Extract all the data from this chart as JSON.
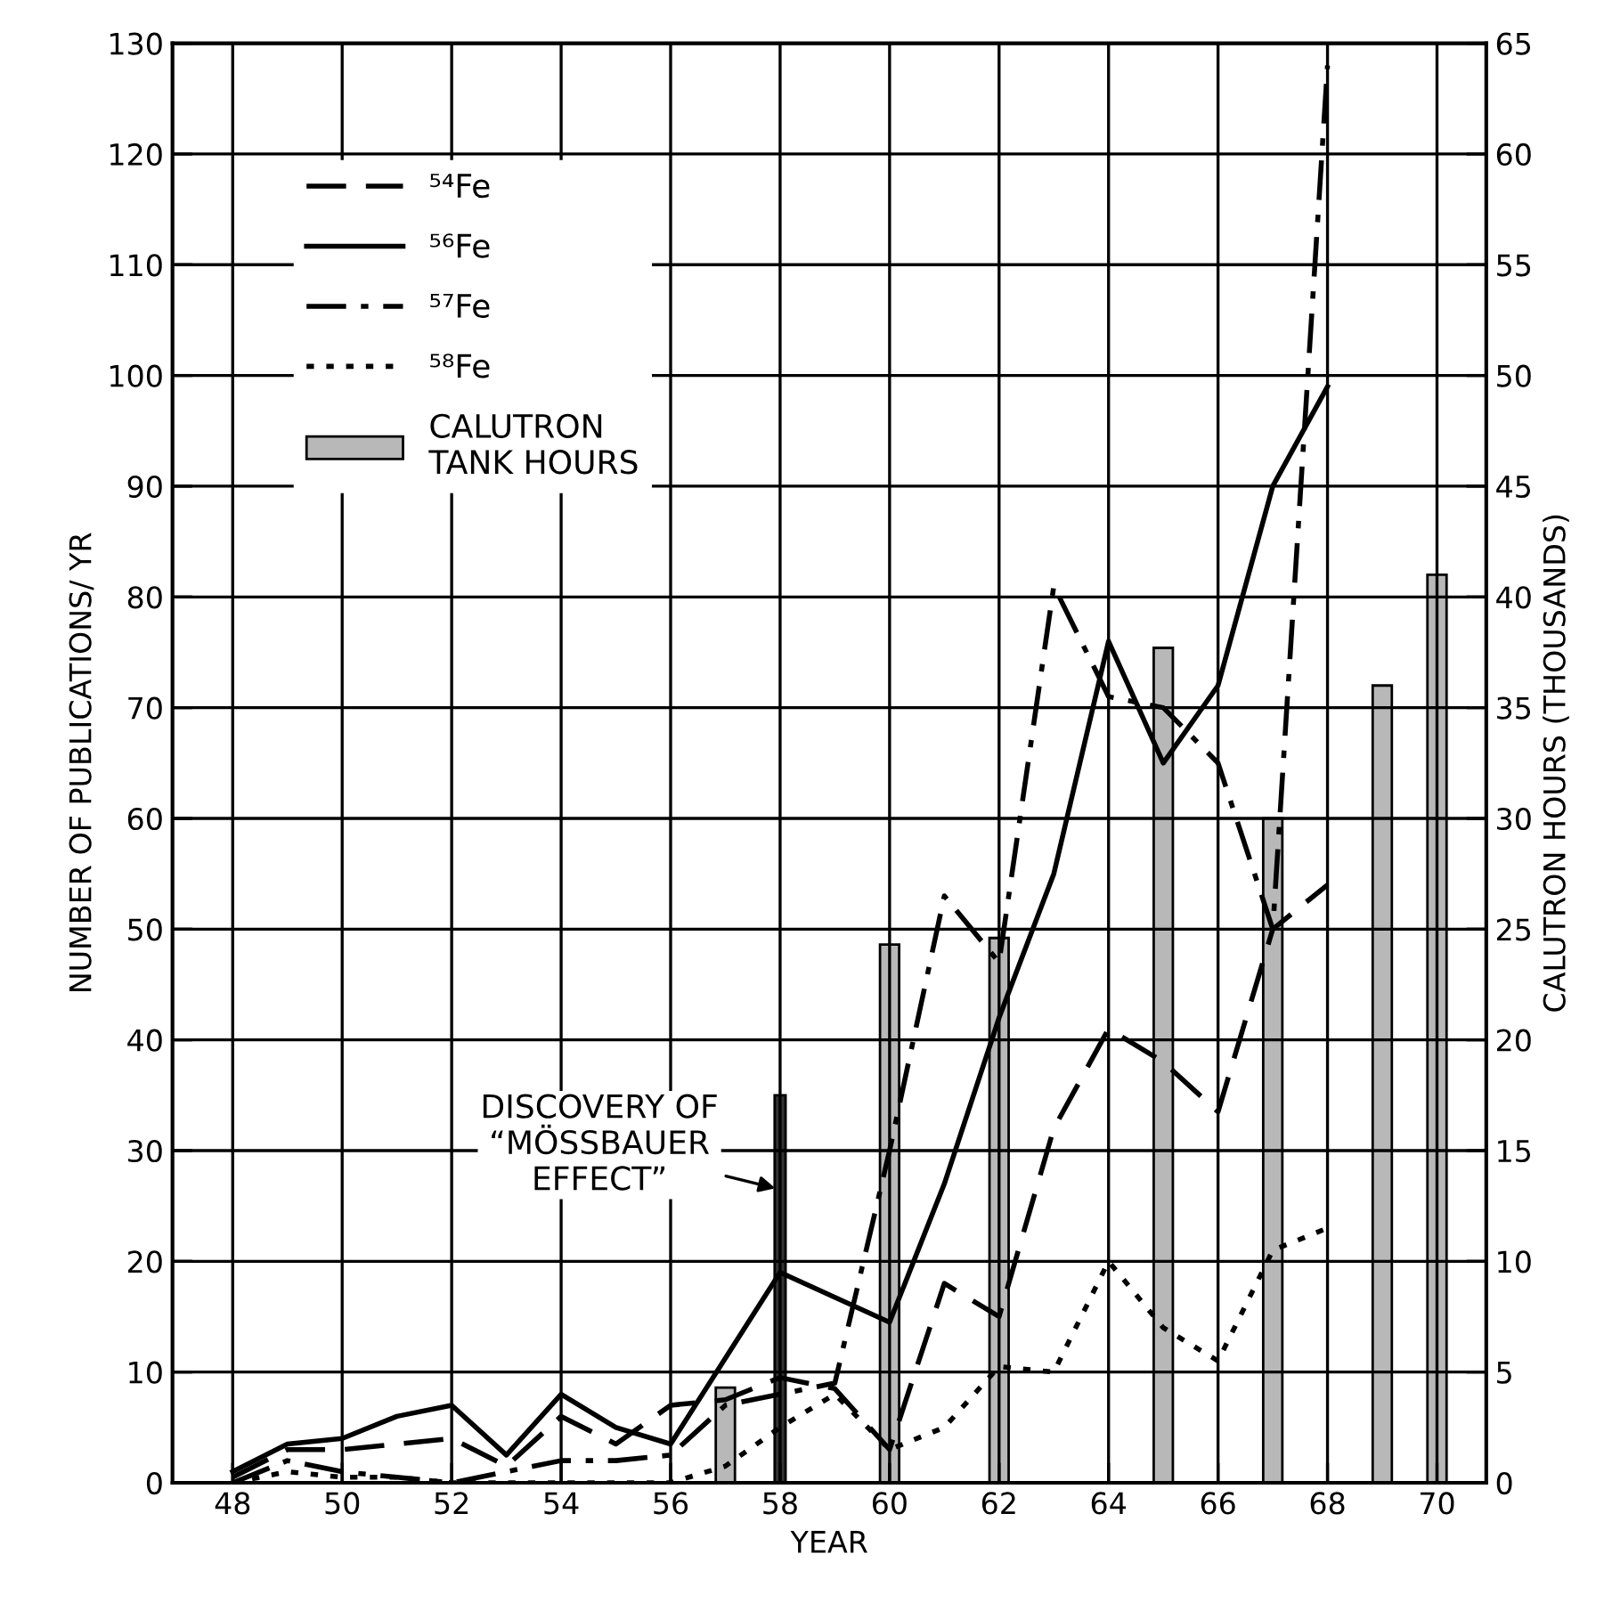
{
  "chart_data": {
    "type": "line",
    "xlabel": "YEAR",
    "ylabel": "NUMBER OF PUBLICATIONS/ YR",
    "y2label": "CALUTRON HOURS (THOUSANDS)",
    "xlim": [
      46.9,
      70.9
    ],
    "xticks": [
      48,
      50,
      52,
      54,
      56,
      58,
      60,
      62,
      64,
      66,
      68,
      70
    ],
    "ylim": [
      0,
      130
    ],
    "yticks": [
      0,
      10,
      20,
      30,
      40,
      50,
      60,
      70,
      80,
      90,
      100,
      110,
      120,
      130
    ],
    "y2lim": [
      0,
      65
    ],
    "y2ticks": [
      0,
      5,
      10,
      15,
      20,
      25,
      30,
      35,
      40,
      45,
      50,
      55,
      60,
      65
    ],
    "grid": true,
    "legend": "top left",
    "series": [
      {
        "name": "⁵⁴Fe",
        "line_style": "dashed",
        "color": "#000000",
        "x": [
          48,
          49,
          50,
          51,
          52,
          53,
          54,
          55,
          56,
          57,
          58,
          59,
          60,
          61,
          62,
          63,
          64,
          65,
          66,
          67,
          68
        ],
        "values": [
          0.5,
          3,
          3,
          3.5,
          4,
          1.5,
          6,
          3.5,
          7,
          7.5,
          9.5,
          8.5,
          3,
          18,
          15,
          32,
          41,
          38,
          33.5,
          50,
          54
        ]
      },
      {
        "name": "⁵⁶Fe",
        "line_style": "solid",
        "color": "#000000",
        "x": [
          48,
          49,
          50,
          51,
          52,
          53,
          54,
          55,
          56,
          58,
          60,
          61,
          62,
          63,
          64,
          65,
          66,
          67,
          68
        ],
        "values": [
          1,
          3.5,
          4,
          6,
          7,
          2.5,
          8,
          5,
          3.5,
          19,
          14.5,
          27,
          42,
          55,
          76,
          65,
          72,
          90,
          99
        ]
      },
      {
        "name": "⁵⁷Fe",
        "line_style": "dashdot",
        "color": "#000000",
        "x": [
          48,
          49,
          50,
          51,
          52,
          53,
          54,
          55,
          56,
          57,
          58,
          59,
          60,
          61,
          62,
          63,
          64,
          65,
          66,
          67,
          68
        ],
        "values": [
          0,
          2,
          1,
          0.5,
          0,
          1,
          2,
          2,
          2.5,
          7,
          8,
          9,
          30,
          53,
          47,
          81,
          71,
          70,
          65,
          50,
          128
        ]
      },
      {
        "name": "⁵⁸Fe",
        "line_style": "dotted",
        "color": "#000000",
        "x": [
          48,
          49,
          50,
          51,
          52,
          53,
          54,
          55,
          56,
          57,
          58,
          59,
          60,
          61,
          62,
          63,
          64,
          65,
          66,
          67,
          68
        ],
        "values": [
          0,
          1,
          0.5,
          0.5,
          0,
          0,
          0,
          0,
          0,
          1.5,
          5,
          8,
          3,
          5,
          10.5,
          10,
          20,
          14,
          11,
          21,
          23
        ]
      },
      {
        "name": "CALUTRON\nTANK HOURS",
        "type": "bar",
        "axis": "y2",
        "color": "#b8b8b8",
        "x": [
          57,
          60,
          62,
          65,
          67,
          69,
          70
        ],
        "values": [
          4.3,
          24.3,
          24.6,
          37.7,
          30,
          36,
          41
        ]
      },
      {
        "type": "bar",
        "color": "#333333",
        "x": [
          58
        ],
        "values": [
          35
        ]
      }
    ],
    "annotations": [
      {
        "text": "DISCOVERY OF\n“MÖSSBAUER\nEFFECT”",
        "x": 58,
        "y": 26.5
      }
    ]
  }
}
